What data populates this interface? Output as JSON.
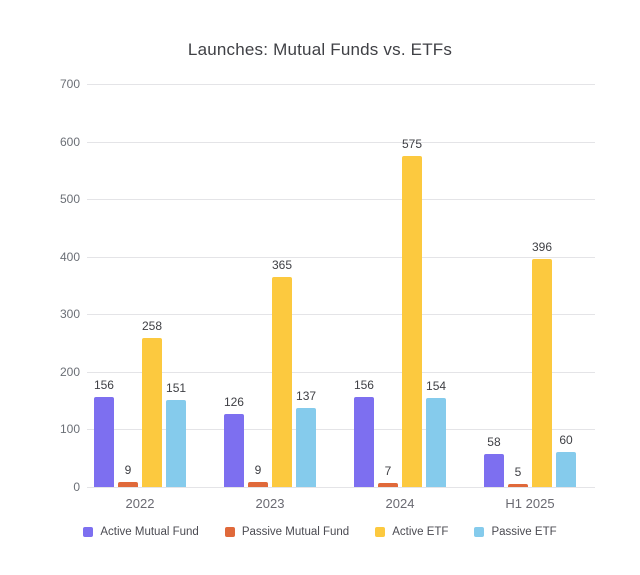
{
  "title": "Launches: Mutual Funds vs. ETFs",
  "chart_data": {
    "type": "bar",
    "title": "Launches: Mutual Funds vs. ETFs",
    "categories": [
      "2022",
      "2023",
      "2024",
      "H1 2025"
    ],
    "series": [
      {
        "name": "Active Mutual Fund",
        "color": "#7d6ff0",
        "values": [
          156,
          126,
          156,
          58
        ]
      },
      {
        "name": "Passive Mutual Fund",
        "color": "#e0693a",
        "values": [
          9,
          9,
          7,
          5
        ]
      },
      {
        "name": "Active ETF",
        "color": "#fcc93f",
        "values": [
          258,
          365,
          575,
          396
        ]
      },
      {
        "name": "Passive ETF",
        "color": "#85cbec",
        "values": [
          151,
          137,
          154,
          60
        ]
      }
    ],
    "ylim": [
      0,
      700
    ],
    "yticks": [
      0,
      100,
      200,
      300,
      400,
      500,
      600,
      700
    ],
    "grid": true,
    "value_labels": true,
    "legend_position": "bottom"
  },
  "colors": {
    "background": "#ffffff",
    "grid": "#e4e4e7",
    "title_text": "#3f4045",
    "tick_text": "#6b6f76",
    "value_text": "#3f4045",
    "category_text": "#6a6a72",
    "legend_text": "#4b4b52"
  }
}
